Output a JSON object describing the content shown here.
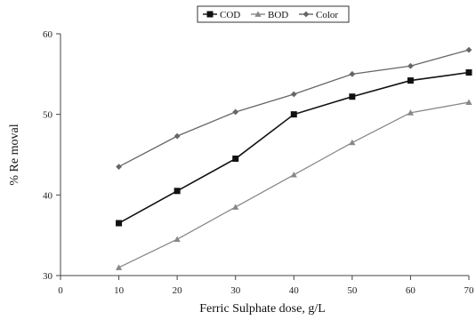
{
  "chart_data": {
    "type": "line",
    "title": "",
    "xlabel": "Ferric Sulphate dose, g/L",
    "ylabel": "% Re moval",
    "xlim": [
      0,
      70
    ],
    "ylim": [
      30,
      60
    ],
    "x_ticks": [
      0,
      10,
      20,
      30,
      40,
      50,
      60,
      70
    ],
    "y_ticks": [
      30,
      40,
      50,
      60
    ],
    "grid": false,
    "legend_position": "top-center",
    "x": [
      10,
      20,
      30,
      40,
      50,
      60,
      70
    ],
    "series": [
      {
        "name": "COD",
        "values": [
          36.5,
          40.5,
          44.5,
          50.0,
          52.2,
          54.2,
          55.2
        ],
        "color": "#111111",
        "marker": "square"
      },
      {
        "name": "BOD",
        "values": [
          31.0,
          34.5,
          38.5,
          42.5,
          46.5,
          50.2,
          51.5
        ],
        "color": "#888888",
        "marker": "triangle"
      },
      {
        "name": "Color",
        "values": [
          43.5,
          47.3,
          50.3,
          52.5,
          55.0,
          56.0,
          58.0
        ],
        "color": "#666666",
        "marker": "diamond"
      }
    ]
  }
}
